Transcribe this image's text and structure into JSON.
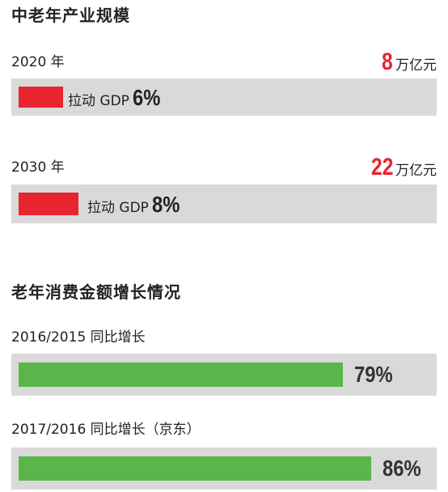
{
  "chart_data": [
    {
      "type": "bar",
      "title": "中老年产业规模",
      "items": [
        {
          "year": "2020 年",
          "amount": "8",
          "unit": "万亿元",
          "drive_prefix": "拉动 GDP",
          "drive_pct": "6%",
          "drive_value": 6
        },
        {
          "year": "2030 年",
          "amount": "22",
          "unit": "万亿元",
          "drive_prefix": "拉动 GDP",
          "drive_pct": "8%",
          "drive_value": 8
        }
      ]
    },
    {
      "type": "bar",
      "title": "老年消费金额增长情况",
      "items": [
        {
          "label": "2016/2015 同比增长",
          "pct": "79%",
          "value": 79
        },
        {
          "label": "2017/2016 同比增长（京东）",
          "pct": "86%",
          "value": 86
        }
      ]
    }
  ],
  "colors": {
    "red": "#e8242e",
    "green": "#5ab54b",
    "track": "#d9d9d9"
  }
}
